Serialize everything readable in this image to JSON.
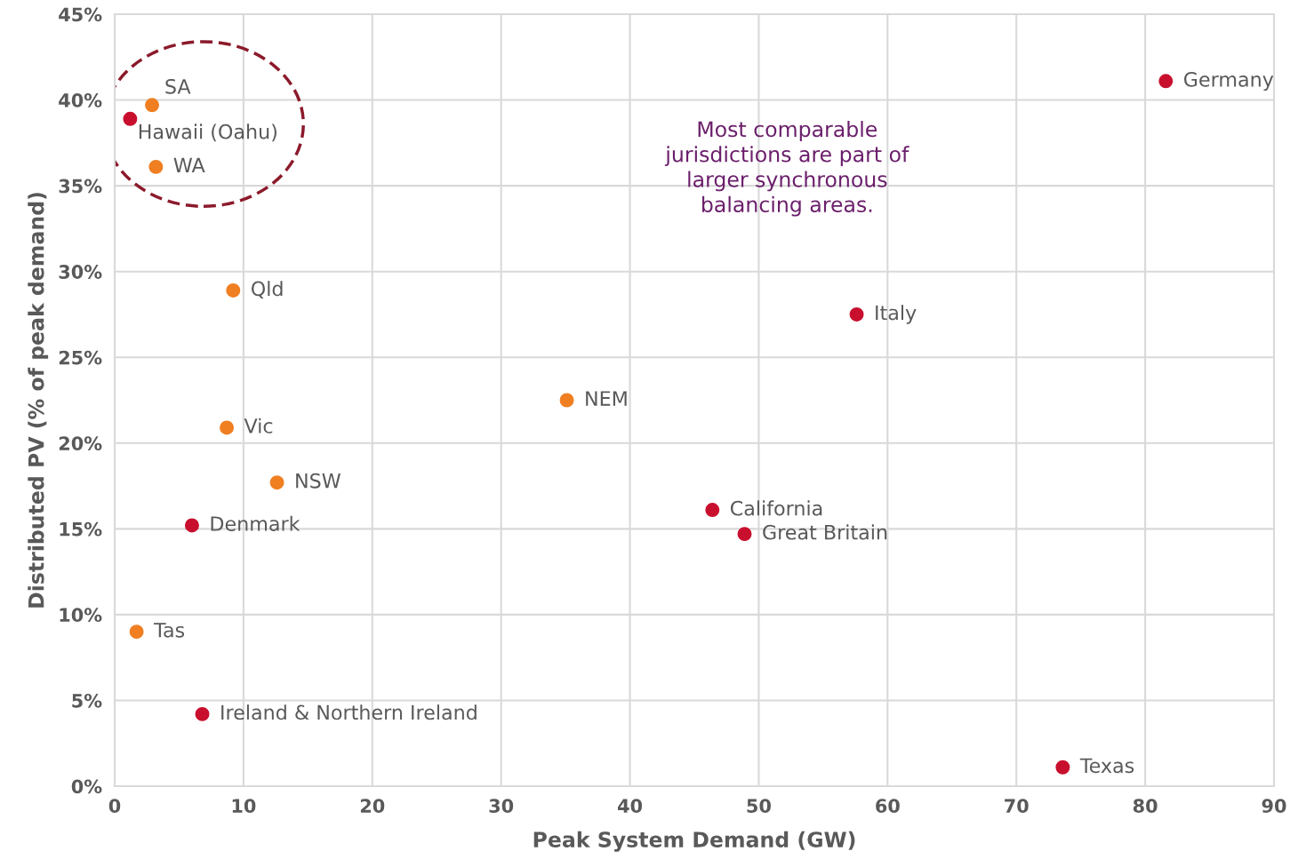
{
  "chart_data": {
    "type": "scatter",
    "xlabel": "Peak System Demand (GW)",
    "ylabel": "Distributed PV (% of peak demand)",
    "xlim": [
      0,
      90
    ],
    "xticks": [
      0,
      10,
      20,
      30,
      40,
      50,
      60,
      70,
      80,
      90
    ],
    "ylim": [
      0,
      45
    ],
    "yticks": [
      {
        "value": 0,
        "label": "0%"
      },
      {
        "value": 5,
        "label": "5%"
      },
      {
        "value": 10,
        "label": "10%"
      },
      {
        "value": 15,
        "label": "15%"
      },
      {
        "value": 20,
        "label": "20%"
      },
      {
        "value": 25,
        "label": "25%"
      },
      {
        "value": 30,
        "label": "30%"
      },
      {
        "value": 35,
        "label": "35%"
      },
      {
        "value": 40,
        "label": "40%"
      },
      {
        "value": 45,
        "label": "45%"
      }
    ],
    "grid": true,
    "legend": false,
    "marker": "circle",
    "series": [
      {
        "color": "#f07f22",
        "x": [
          2.9,
          3.2,
          9.2,
          8.7,
          12.6,
          1.7,
          35.1
        ],
        "values": [
          39.7,
          36.1,
          28.9,
          20.9,
          17.7,
          9.0,
          22.5
        ]
      },
      {
        "color": "#c8102e",
        "x": [
          1.2,
          6.0,
          6.8,
          46.4,
          48.9,
          57.6,
          81.6,
          73.6
        ],
        "values": [
          38.9,
          15.2,
          4.2,
          16.1,
          14.7,
          27.5,
          41.1,
          1.1
        ]
      }
    ],
    "annotations": [
      {
        "text": "SA",
        "x": 2.9,
        "y": 39.7
      },
      {
        "text": "Hawaii (Oahu)",
        "x": 1.2,
        "y": 38.9
      },
      {
        "text": "WA",
        "x": 3.2,
        "y": 36.1
      },
      {
        "text": "Qld",
        "x": 9.2,
        "y": 28.9
      },
      {
        "text": "Vic",
        "x": 8.7,
        "y": 20.9
      },
      {
        "text": "NSW",
        "x": 12.6,
        "y": 17.7
      },
      {
        "text": "Denmark",
        "x": 6.0,
        "y": 15.2
      },
      {
        "text": "Tas",
        "x": 1.7,
        "y": 9.0
      },
      {
        "text": "Ireland & Northern Ireland",
        "x": 6.8,
        "y": 4.2
      },
      {
        "text": "NEM",
        "x": 35.1,
        "y": 22.5
      },
      {
        "text": "California",
        "x": 46.4,
        "y": 16.1
      },
      {
        "text": "Great Britain",
        "x": 48.9,
        "y": 14.7
      },
      {
        "text": "Italy",
        "x": 57.6,
        "y": 27.5
      },
      {
        "text": "Germany",
        "x": 81.6,
        "y": 41.1
      },
      {
        "text": "Texas",
        "x": 73.6,
        "y": 1.1
      },
      "Most comparable\njurisdictions are part of\nlarger synchronous\nbalancing areas."
    ]
  }
}
